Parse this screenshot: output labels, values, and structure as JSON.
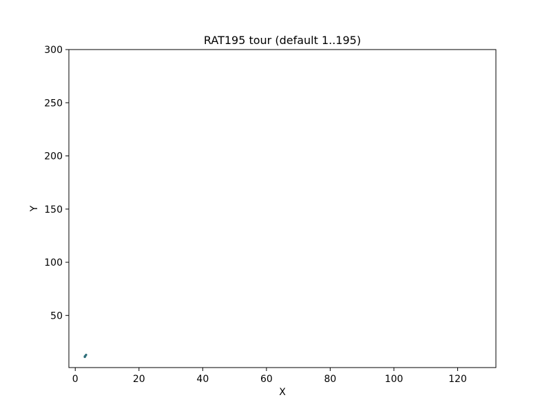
{
  "chart_data": {
    "type": "line",
    "title": "RAT195 tour (default 1..195)",
    "xlabel": "X",
    "ylabel": "Y",
    "xlim": [
      -2,
      132
    ],
    "ylim": [
      1,
      300
    ],
    "xticks": [
      0,
      20,
      40,
      60,
      80,
      100,
      120
    ],
    "yticks": [
      50,
      100,
      150,
      200,
      250,
      300
    ],
    "grid": false,
    "legend": false,
    "series": [
      {
        "color": "#17becf",
        "x": [
          3,
          3.2,
          3.4,
          3.0,
          3
        ],
        "y": [
          11,
          12,
          13,
          11.5,
          11
        ]
      }
    ]
  }
}
